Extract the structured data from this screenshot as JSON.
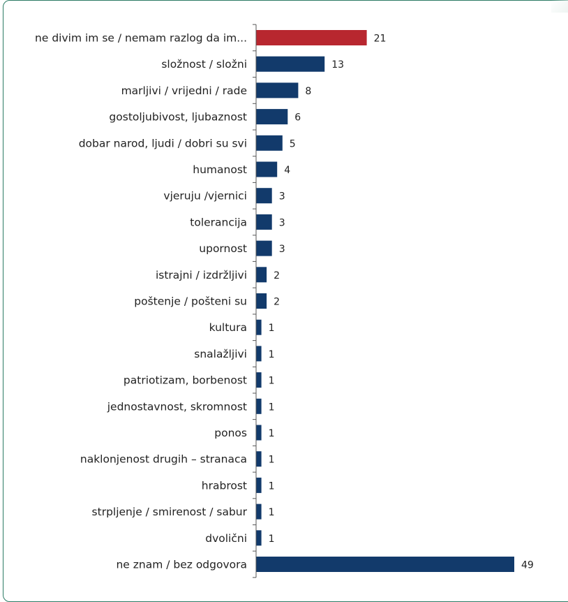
{
  "chart_data": {
    "type": "bar",
    "orientation": "horizontal",
    "categories": [
      "ne divim im se / nemam razlog da im...",
      "složnost / složni",
      "marljivi / vrijedni / rade",
      "gostoljubivost, ljubaznost",
      "dobar narod, ljudi / dobri su svi",
      "humanost",
      "vjeruju /vjernici",
      "tolerancija",
      "upornost",
      "istrajni / izdržljivi",
      "poštenje / pošteni su",
      "kultura",
      "snalažljivi",
      "patriotizam, borbenost",
      "jednostavnost, skromnost",
      "ponos",
      "naklonjenost drugih – stranaca",
      "hrabrost",
      "strpljenje / smirenost / sabur",
      "dvolični",
      "ne znam / bez odgovora"
    ],
    "values": [
      21,
      13,
      8,
      6,
      5,
      4,
      3,
      3,
      3,
      2,
      2,
      1,
      1,
      1,
      1,
      1,
      1,
      1,
      1,
      1,
      49
    ],
    "value_labels": [
      "21",
      "13",
      "8",
      "6",
      "5",
      "4",
      "3",
      "3",
      "3",
      "2",
      "2",
      "1",
      "1",
      "1",
      "1",
      "1",
      "1",
      "1",
      "1",
      "1",
      "49"
    ],
    "highlight_index": 0,
    "colors": {
      "default": "#123a6b",
      "highlight": "#b8272f",
      "axis": "#555555",
      "frame": "#2b7a64"
    },
    "xlim": [
      0,
      49
    ],
    "grid": false,
    "legend": "none"
  }
}
